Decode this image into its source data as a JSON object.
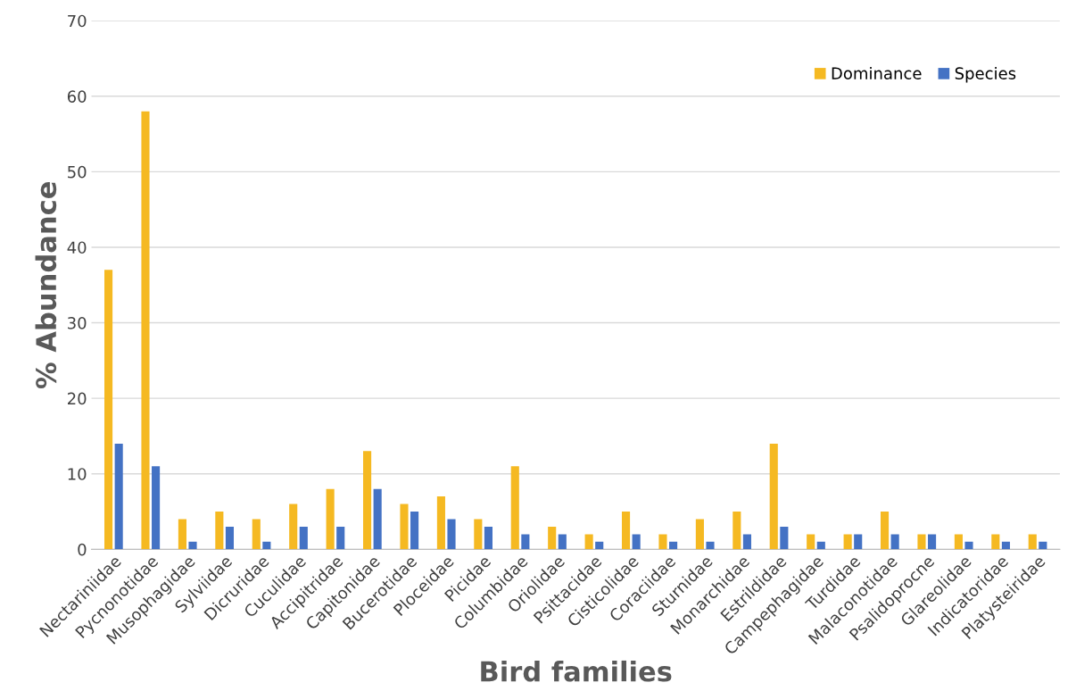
{
  "chart_data": {
    "type": "bar",
    "xlabel": "Bird families",
    "ylabel": "% Abundance",
    "categories": [
      "Nectariniidae",
      "Pycnonotidae",
      "Musophagidae",
      "Sylviidae",
      "Dicruridae",
      "Cuculidae",
      "Accipitridae",
      "Capitonidae",
      "Bucerotidae",
      "Ploceidae",
      "Picidae",
      "Columbidae",
      "Oriolidae",
      "Psittacidae",
      "Cisticolidae",
      "Coraciidae",
      "Sturnidae",
      "Monarchidae",
      "Estrildidae",
      "Campephagidae",
      "Turdidae",
      "Malaconotidae",
      "Psalidoprocne",
      "Glareolidae",
      "Indicatoridae",
      "Platysteiridae"
    ],
    "series": [
      {
        "name": "Dominance",
        "color": "#f5b922",
        "values": [
          37,
          58,
          4,
          5,
          4,
          6,
          8,
          13,
          6,
          7,
          4,
          11,
          3,
          2,
          5,
          2,
          4,
          5,
          14,
          2,
          2,
          5,
          2,
          2,
          2,
          2
        ]
      },
      {
        "name": "Species",
        "color": "#4472c4",
        "values": [
          14,
          11,
          1,
          3,
          1,
          3,
          3,
          8,
          5,
          4,
          3,
          2,
          2,
          1,
          2,
          1,
          1,
          2,
          3,
          1,
          2,
          2,
          2,
          1,
          1,
          1
        ]
      }
    ],
    "ylim": [
      0,
      70
    ],
    "yticks": [
      0,
      10,
      20,
      30,
      40,
      50,
      60,
      70
    ],
    "grid": "y",
    "legend": "top right"
  }
}
